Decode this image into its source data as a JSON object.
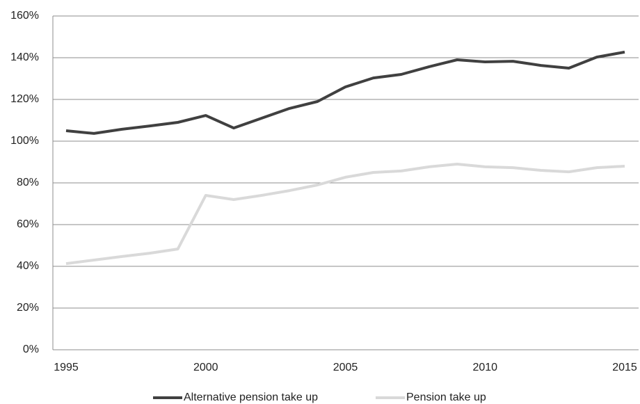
{
  "chart_data": {
    "type": "line",
    "x": [
      1995,
      1996,
      1997,
      1998,
      1999,
      2000,
      2001,
      2002,
      2003,
      2004,
      2005,
      2006,
      2007,
      2008,
      2009,
      2010,
      2011,
      2012,
      2013,
      2014,
      2015
    ],
    "series": [
      {
        "name": "Alternative pension take up",
        "color": "#404040",
        "values": [
          105,
          103.7,
          105.7,
          107.3,
          109,
          112.3,
          106.3,
          111,
          115.7,
          119,
          126,
          130.3,
          132,
          135.7,
          139,
          138,
          138.3,
          136.3,
          135,
          140.3,
          142.7
        ]
      },
      {
        "name": "Pension take up",
        "color": "#d9d9d9",
        "values": [
          41.3,
          43,
          44.7,
          46.3,
          48.3,
          74,
          72,
          74,
          76.3,
          79,
          82.7,
          85,
          85.7,
          87.7,
          89,
          87.7,
          87.3,
          86,
          85.3,
          87.3,
          88
        ]
      }
    ],
    "xlim": [
      1995,
      2015
    ],
    "xticks": [
      1995,
      2000,
      2005,
      2010,
      2015
    ],
    "ylim": [
      0,
      160
    ],
    "yticks": [
      {
        "value": 0,
        "label": "0%"
      },
      {
        "value": 20,
        "label": "20%"
      },
      {
        "value": 40,
        "label": "40%"
      },
      {
        "value": 60,
        "label": "60%"
      },
      {
        "value": 80,
        "label": "80%"
      },
      {
        "value": 100,
        "label": "100%"
      },
      {
        "value": 120,
        "label": "120%"
      },
      {
        "value": 140,
        "label": "140%"
      },
      {
        "value": 160,
        "label": "160%"
      }
    ],
    "grid": true,
    "legend": "bottom"
  }
}
